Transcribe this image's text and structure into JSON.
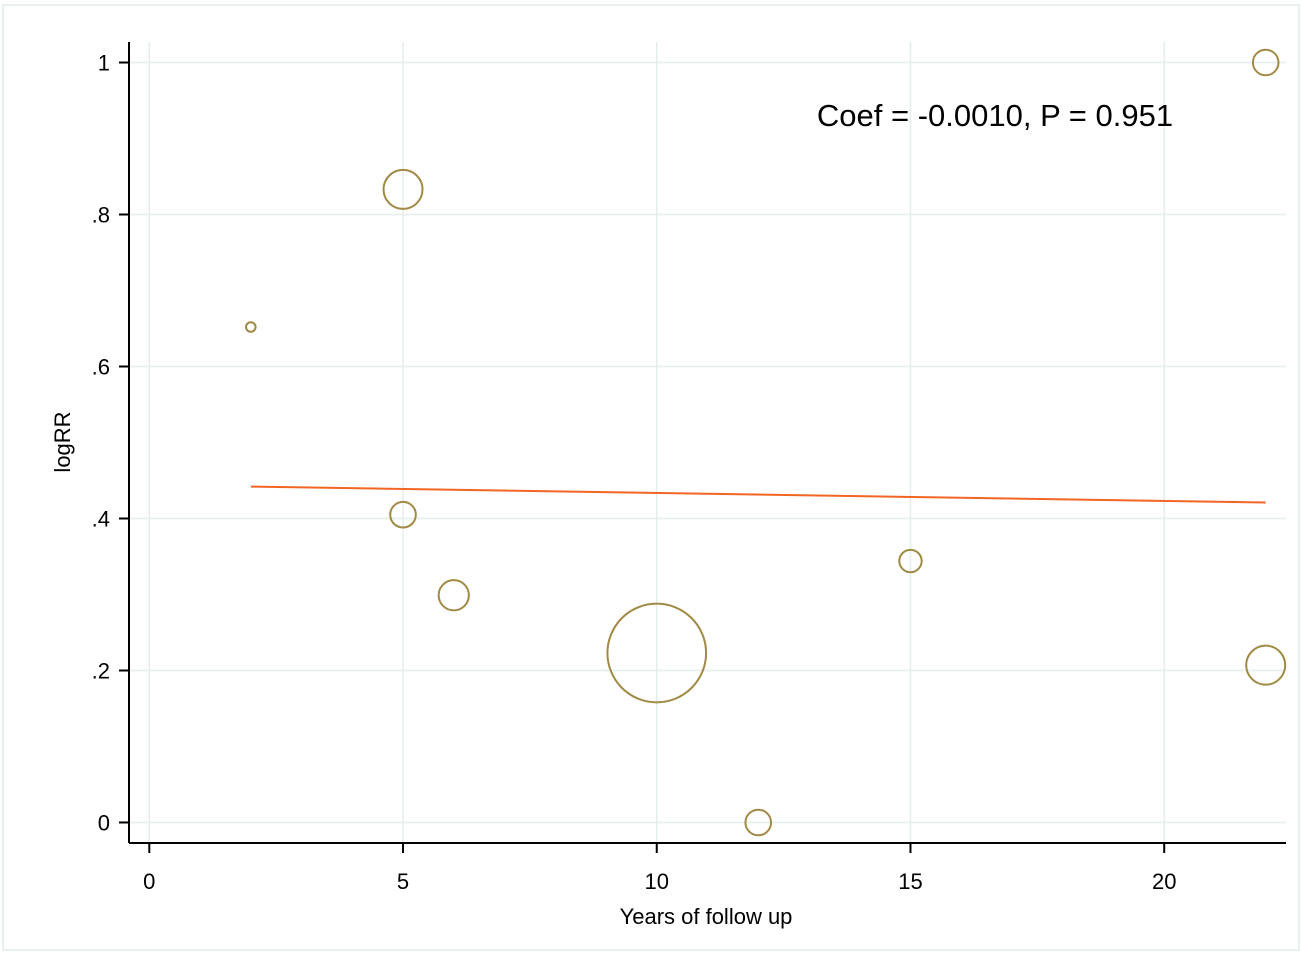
{
  "chart_data": {
    "type": "scatter",
    "xlabel": "Years of follow up",
    "ylabel": "logRR",
    "xlim": [
      -0.4,
      22.4
    ],
    "ylim": [
      -0.027,
      1.027
    ],
    "xticks": [
      {
        "value": 0,
        "label": "0"
      },
      {
        "value": 5,
        "label": "5"
      },
      {
        "value": 10,
        "label": "10"
      },
      {
        "value": 15,
        "label": "15"
      },
      {
        "value": 20,
        "label": "20"
      }
    ],
    "yticks": [
      {
        "value": 0,
        "label": "0"
      },
      {
        "value": 0.2,
        "label": ".2"
      },
      {
        "value": 0.4,
        "label": ".4"
      },
      {
        "value": 0.6,
        "label": ".6"
      },
      {
        "value": 0.8,
        "label": ".8"
      },
      {
        "value": 1,
        "label": "1"
      }
    ],
    "grid": true,
    "points": [
      {
        "x": 2,
        "y": 0.652,
        "weight": 0.06
      },
      {
        "x": 5,
        "y": 0.833,
        "weight": 1.0
      },
      {
        "x": 5,
        "y": 0.405,
        "weight": 0.43
      },
      {
        "x": 6,
        "y": 0.299,
        "weight": 0.6
      },
      {
        "x": 10,
        "y": 0.223,
        "weight": 6.4
      },
      {
        "x": 12,
        "y": 0.0,
        "weight": 0.43
      },
      {
        "x": 15,
        "y": 0.344,
        "weight": 0.33
      },
      {
        "x": 22,
        "y": 1.0,
        "weight": 0.43
      },
      {
        "x": 22,
        "y": 0.207,
        "weight": 1.0
      }
    ],
    "fit_line": {
      "x": [
        2,
        22
      ],
      "y": [
        0.442,
        0.421
      ]
    },
    "annotation": "Coef = -0.0010, P = 0.951",
    "colors": {
      "marker": "#a08a44",
      "fit": "#f26522",
      "grid": "#e4eeee",
      "axis": "#000000",
      "frame": "#e8f0f0"
    }
  }
}
